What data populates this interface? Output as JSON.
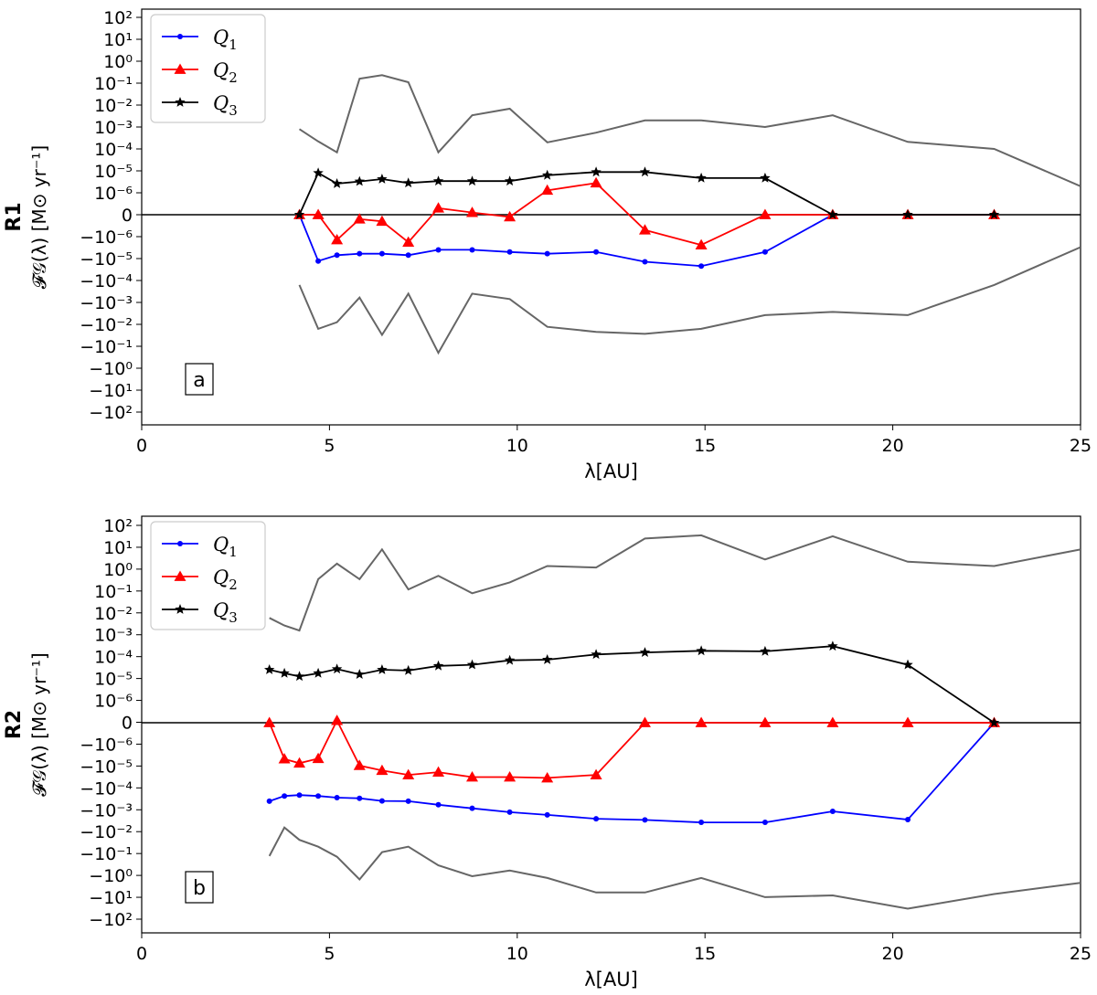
{
  "chart_data": [
    {
      "type": "line",
      "panel_tag": "R1",
      "annotation": "a",
      "ylabel": "𝓕𝒢(λ) [M⊙ yr⁻¹]",
      "xlabel": "λ[AU]",
      "xlim": [
        0,
        25
      ],
      "x_ticks": [
        "0",
        "5",
        "10",
        "15",
        "20",
        "25"
      ],
      "y_ticks": [
        "−10²",
        "−10¹",
        "−10⁰",
        "−10⁻¹",
        "−10⁻²",
        "−10⁻³",
        "−10⁻⁴",
        "−10⁻⁵",
        "−10⁻⁶",
        "0",
        "10⁻⁶",
        "10⁻⁵",
        "10⁻⁴",
        "10⁻³",
        "10⁻²",
        "10⁻¹",
        "10⁰",
        "10¹",
        "10²"
      ],
      "y_scale": "symlog (decades 10^-6 .. 10^2, linear zero band)",
      "legend_position": "top-left",
      "series": [
        {
          "name": "Q",
          "subscript": "1",
          "color": "#0000ff",
          "marker": "dot",
          "x": [
            4.2,
            4.7,
            5.2,
            5.8,
            6.4,
            7.1,
            7.9,
            8.8,
            9.8,
            10.8,
            12.1,
            13.4,
            14.9,
            16.6,
            18.4,
            20.4,
            22.7
          ],
          "y": [
            0,
            -1.3e-05,
            -7e-06,
            -6e-06,
            -6e-06,
            -7e-06,
            -4e-06,
            -4e-06,
            -5e-06,
            -6e-06,
            -5e-06,
            -1.4e-05,
            -2.2e-05,
            -5e-06,
            0,
            0,
            0
          ]
        },
        {
          "name": "Q",
          "subscript": "2",
          "color": "#ff0000",
          "marker": "triangle",
          "x": [
            4.2,
            4.7,
            5.2,
            5.8,
            6.4,
            7.1,
            7.9,
            8.8,
            9.8,
            10.8,
            12.1,
            13.4,
            14.9,
            16.6,
            18.4,
            20.4,
            22.7
          ],
          "y": [
            0,
            0,
            -1.4e-06,
            -2e-07,
            -3e-07,
            -1.8e-06,
            3e-07,
            1e-07,
            -1e-07,
            1.3e-06,
            2.8e-06,
            -7e-07,
            -2.4e-06,
            0,
            0,
            0,
            0
          ]
        },
        {
          "name": "Q",
          "subscript": "3",
          "color": "#000000",
          "marker": "star",
          "x": [
            4.2,
            4.7,
            5.2,
            5.8,
            6.4,
            7.1,
            7.9,
            8.8,
            9.8,
            10.8,
            12.1,
            13.4,
            14.9,
            16.6,
            18.4,
            20.4,
            22.7
          ],
          "y": [
            0,
            8e-06,
            2.6e-06,
            3.3e-06,
            4.2e-06,
            2.8e-06,
            3.4e-06,
            3.4e-06,
            3.4e-06,
            6.3e-06,
            8.8e-06,
            8.8e-06,
            4.7e-06,
            4.7e-06,
            0,
            0,
            0
          ]
        },
        {
          "name": "envelope-upper",
          "color": "#666666",
          "marker": "none",
          "x": [
            4.2,
            4.7,
            5.2,
            5.8,
            6.4,
            7.1,
            7.9,
            8.8,
            9.8,
            10.8,
            12.1,
            13.4,
            14.9,
            16.6,
            18.4,
            20.4,
            22.7,
            25.0
          ],
          "y": [
            0.0008,
            0.00022,
            7e-05,
            0.16,
            0.23,
            0.11,
            7e-05,
            0.0034,
            0.0068,
            0.0002,
            0.00055,
            0.002,
            0.002,
            0.001,
            0.0034,
            0.00021,
            0.0001,
            2e-06
          ]
        },
        {
          "name": "envelope-lower",
          "color": "#666666",
          "marker": "none",
          "x": [
            4.2,
            4.7,
            5.2,
            5.8,
            6.4,
            7.1,
            7.9,
            8.8,
            9.8,
            10.8,
            12.1,
            13.4,
            14.9,
            16.6,
            18.4,
            20.4,
            22.7,
            25.0
          ],
          "y": [
            -0.00016,
            -0.016,
            -0.008,
            -0.0006,
            -0.03,
            -0.0004,
            -0.2,
            -0.0004,
            -0.0007,
            -0.013,
            -0.022,
            -0.027,
            -0.016,
            -0.0038,
            -0.0027,
            -0.0038,
            -0.00016,
            -3e-06
          ]
        }
      ]
    },
    {
      "type": "line",
      "panel_tag": "R2",
      "annotation": "b",
      "ylabel": "𝓕𝒢(λ) [M⊙ yr⁻¹]",
      "xlabel": "λ[AU]",
      "xlim": [
        0,
        25
      ],
      "x_ticks": [
        "0",
        "5",
        "10",
        "15",
        "20",
        "25"
      ],
      "y_ticks": [
        "−10²",
        "−10¹",
        "−10⁰",
        "−10⁻¹",
        "−10⁻²",
        "−10⁻³",
        "−10⁻⁴",
        "−10⁻⁵",
        "−10⁻⁶",
        "0",
        "10⁻⁶",
        "10⁻⁵",
        "10⁻⁴",
        "10⁻³",
        "10⁻²",
        "10⁻¹",
        "10⁰",
        "10¹",
        "10²"
      ],
      "y_scale": "symlog (decades 10^-6 .. 10^2, linear zero band)",
      "legend_position": "top-left",
      "series": [
        {
          "name": "Q",
          "subscript": "1",
          "color": "#0000ff",
          "marker": "dot",
          "x": [
            3.4,
            3.8,
            4.2,
            4.7,
            5.2,
            5.8,
            6.4,
            7.1,
            7.9,
            8.8,
            9.8,
            10.8,
            12.1,
            13.4,
            14.9,
            16.6,
            18.4,
            20.4,
            22.7
          ],
          "y": [
            -0.00038,
            -0.00022,
            -0.0002,
            -0.00022,
            -0.00026,
            -0.00028,
            -0.00037,
            -0.00038,
            -0.00055,
            -0.0008,
            -0.0012,
            -0.0016,
            -0.0024,
            -0.0027,
            -0.0035,
            -0.0035,
            -0.0011,
            -0.0026,
            0
          ]
        },
        {
          "name": "Q",
          "subscript": "2",
          "color": "#ff0000",
          "marker": "triangle",
          "x": [
            3.4,
            3.8,
            4.2,
            4.7,
            5.2,
            5.8,
            6.4,
            7.1,
            7.9,
            8.8,
            9.8,
            10.8,
            12.1,
            13.4,
            14.9,
            16.6,
            18.4,
            20.4,
            22.7
          ],
          "y": [
            0,
            -4.5e-06,
            -7e-06,
            -4.3e-06,
            1e-07,
            -9e-06,
            -1.5e-05,
            -2.4e-05,
            -1.8e-05,
            -3e-05,
            -3e-05,
            -3.3e-05,
            -2.4e-05,
            0,
            0,
            0,
            0,
            0,
            0
          ]
        },
        {
          "name": "Q",
          "subscript": "3",
          "color": "#000000",
          "marker": "star",
          "x": [
            3.4,
            3.8,
            4.2,
            4.7,
            5.2,
            5.8,
            6.4,
            7.1,
            7.9,
            8.8,
            9.8,
            10.8,
            12.1,
            13.4,
            14.9,
            16.6,
            18.4,
            20.4,
            22.7
          ],
          "y": [
            2.6e-05,
            1.8e-05,
            1.3e-05,
            1.8e-05,
            2.8e-05,
            1.6e-05,
            2.6e-05,
            2.4e-05,
            3.9e-05,
            4.4e-05,
            7e-05,
            7.5e-05,
            0.00013,
            0.00016,
            0.00019,
            0.00018,
            0.00031,
            4.4e-05,
            0
          ]
        },
        {
          "name": "envelope-upper",
          "color": "#666666",
          "marker": "none",
          "x": [
            3.4,
            3.8,
            4.2,
            4.7,
            5.2,
            5.8,
            6.4,
            7.1,
            7.9,
            8.8,
            9.8,
            10.8,
            12.1,
            13.4,
            14.9,
            16.6,
            18.4,
            20.4,
            22.7,
            25.0
          ],
          "y": [
            0.006,
            0.0027,
            0.0016,
            0.35,
            1.8,
            0.35,
            8,
            0.12,
            0.5,
            0.08,
            0.25,
            1.4,
            1.2,
            25,
            35,
            2.8,
            32,
            2.2,
            1.4,
            8
          ]
        },
        {
          "name": "envelope-lower",
          "color": "#666666",
          "marker": "none",
          "x": [
            3.4,
            3.8,
            4.2,
            4.7,
            5.2,
            5.8,
            6.4,
            7.1,
            7.9,
            8.8,
            9.8,
            10.8,
            12.1,
            13.4,
            14.9,
            16.6,
            18.4,
            20.4,
            22.7,
            25.0
          ],
          "y": [
            -0.12,
            -0.006,
            -0.022,
            -0.045,
            -0.13,
            -1.4,
            -0.08,
            -0.045,
            -0.32,
            -1.0,
            -0.55,
            -1.2,
            -5.5,
            -5.5,
            -1.2,
            -9,
            -7.5,
            -30,
            -6.5,
            -2
          ]
        }
      ]
    }
  ]
}
